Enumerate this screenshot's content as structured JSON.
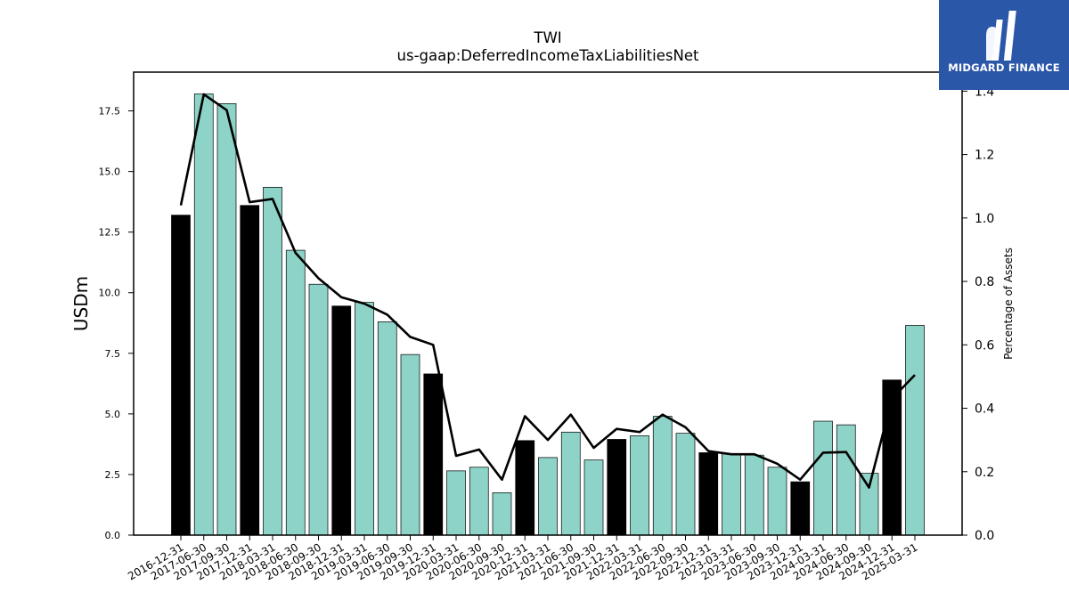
{
  "brand": {
    "name": "MIDGARD FINANCE",
    "background": "#2b57a8"
  },
  "chart_data": {
    "type": "bar",
    "title": "TWI",
    "subtitle": "us-gaap:DeferredIncomeTaxLiabilitiesNet",
    "ylabel": "USDm",
    "y2label": "Percentage of Assets",
    "ylim": [
      0,
      19.1
    ],
    "y2lim": [
      0,
      1.46
    ],
    "yticks": [
      "0.0",
      "2.5",
      "5.0",
      "7.5",
      "10.0",
      "12.5",
      "15.0",
      "17.5"
    ],
    "y2ticks": [
      "0.0",
      "0.2",
      "0.4",
      "0.6",
      "0.8",
      "1.0",
      "1.2",
      "1.4"
    ],
    "colors": {
      "q4_bar": "#000000",
      "other_bar": "#8dd3c7",
      "line": "#000000"
    },
    "categories": [
      "2016-12-31",
      "2017-06-30",
      "2017-09-30",
      "2017-12-31",
      "2018-03-31",
      "2018-06-30",
      "2018-09-30",
      "2018-12-31",
      "2019-03-31",
      "2019-06-30",
      "2019-09-30",
      "2019-12-31",
      "2020-03-31",
      "2020-06-30",
      "2020-09-30",
      "2020-12-31",
      "2021-03-31",
      "2021-06-30",
      "2021-09-30",
      "2021-12-31",
      "2022-03-31",
      "2022-06-30",
      "2022-09-30",
      "2022-12-31",
      "2023-03-31",
      "2023-06-30",
      "2023-09-30",
      "2023-12-31",
      "2024-03-31",
      "2024-06-30",
      "2024-09-30",
      "2024-12-31",
      "2025-03-31"
    ],
    "series": [
      {
        "name": "USDm",
        "kind": "bar",
        "values": [
          13.2,
          18.2,
          17.8,
          13.6,
          14.35,
          11.75,
          10.35,
          9.45,
          9.6,
          8.8,
          7.45,
          6.65,
          2.65,
          2.8,
          1.75,
          3.9,
          3.2,
          4.25,
          3.1,
          3.95,
          4.1,
          4.9,
          4.2,
          3.4,
          3.35,
          3.3,
          2.8,
          2.2,
          4.7,
          4.55,
          2.55,
          6.4,
          8.65
        ],
        "is_q4": [
          true,
          false,
          false,
          true,
          false,
          false,
          false,
          true,
          false,
          false,
          false,
          true,
          false,
          false,
          false,
          true,
          false,
          false,
          false,
          true,
          false,
          false,
          false,
          true,
          false,
          false,
          false,
          true,
          false,
          false,
          false,
          true,
          false
        ]
      },
      {
        "name": "Percentage of Assets",
        "kind": "line",
        "axis": "right",
        "values": [
          1.04,
          1.39,
          1.34,
          1.05,
          1.06,
          0.89,
          0.81,
          0.75,
          0.73,
          0.695,
          0.625,
          0.6,
          0.25,
          0.27,
          0.175,
          0.375,
          0.3,
          0.38,
          0.275,
          0.335,
          0.325,
          0.38,
          0.34,
          0.265,
          0.255,
          0.255,
          0.225,
          0.175,
          0.26,
          0.262,
          0.15,
          0.43,
          0.505
        ]
      }
    ]
  }
}
